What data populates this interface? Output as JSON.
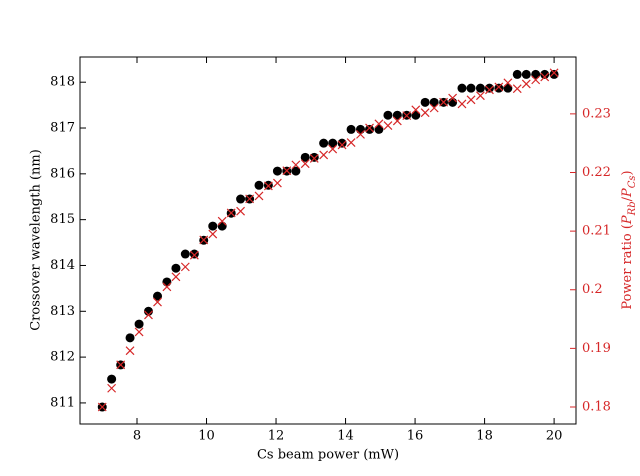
{
  "chart_data": {
    "type": "scatter",
    "xlabel": "Cs beam power (mW)",
    "ylabel": "Crossover wavelength (nm)",
    "y2label": "Power ratio (P_Rb/P_Cs)",
    "xlim": [
      6.36,
      20.63
    ],
    "ylim": [
      810.54,
      818.55
    ],
    "y2lim": [
      0.1771,
      0.2397
    ],
    "xticks": [
      8,
      10,
      12,
      14,
      16,
      18,
      20
    ],
    "yticks": [
      811,
      812,
      813,
      814,
      815,
      816,
      817,
      818
    ],
    "y2ticks": [
      0.18,
      0.19,
      0.2,
      0.21,
      0.22,
      0.23
    ],
    "y2color": "#d62728",
    "x": [
      7,
      7.27,
      7.53,
      7.8,
      8.06,
      8.33,
      8.59,
      8.86,
      9.12,
      9.39,
      9.65,
      9.92,
      10.18,
      10.45,
      10.71,
      10.98,
      11.24,
      11.51,
      11.78,
      12.04,
      12.31,
      12.57,
      12.84,
      13.1,
      13.37,
      13.63,
      13.9,
      14.16,
      14.43,
      14.69,
      14.96,
      15.22,
      15.49,
      15.76,
      16.02,
      16.29,
      16.55,
      16.82,
      17.08,
      17.35,
      17.61,
      17.88,
      18.14,
      18.41,
      18.67,
      18.94,
      19.2,
      19.47,
      19.73,
      20
    ],
    "series": [
      {
        "color": "#000000",
        "marker": "o",
        "values": [
          810.91,
          811.52,
          811.83,
          812.42,
          812.72,
          813.0,
          813.33,
          813.64,
          813.94,
          814.25,
          814.25,
          814.55,
          814.86,
          814.86,
          815.14,
          815.45,
          815.45,
          815.75,
          815.75,
          816.06,
          816.06,
          816.06,
          816.36,
          816.36,
          816.67,
          816.67,
          816.67,
          816.97,
          816.97,
          816.97,
          816.97,
          817.28,
          817.28,
          817.28,
          817.28,
          817.56,
          817.56,
          817.56,
          817.56,
          817.87,
          817.87,
          817.87,
          817.87,
          817.87,
          817.87,
          818.17,
          818.17,
          818.17,
          818.17,
          818.17
        ]
      },
      {
        "color": "#d62728",
        "marker": "x",
        "axis": "y2",
        "values": [
          0.18,
          0.1832,
          0.1872,
          0.1896,
          0.1928,
          0.1957,
          0.1979,
          0.2005,
          0.2022,
          0.2039,
          0.2059,
          0.2085,
          0.2095,
          0.2117,
          0.2131,
          0.2134,
          0.2155,
          0.216,
          0.2177,
          0.2182,
          0.2203,
          0.2213,
          0.2215,
          0.2224,
          0.223,
          0.224,
          0.2247,
          0.2251,
          0.2265,
          0.2276,
          0.2283,
          0.228,
          0.2288,
          0.2297,
          0.2307,
          0.2302,
          0.231,
          0.232,
          0.2327,
          0.2317,
          0.2324,
          0.2331,
          0.2341,
          0.2346,
          0.2353,
          0.2343,
          0.2351,
          0.2358,
          0.2363,
          0.237
        ]
      }
    ]
  }
}
